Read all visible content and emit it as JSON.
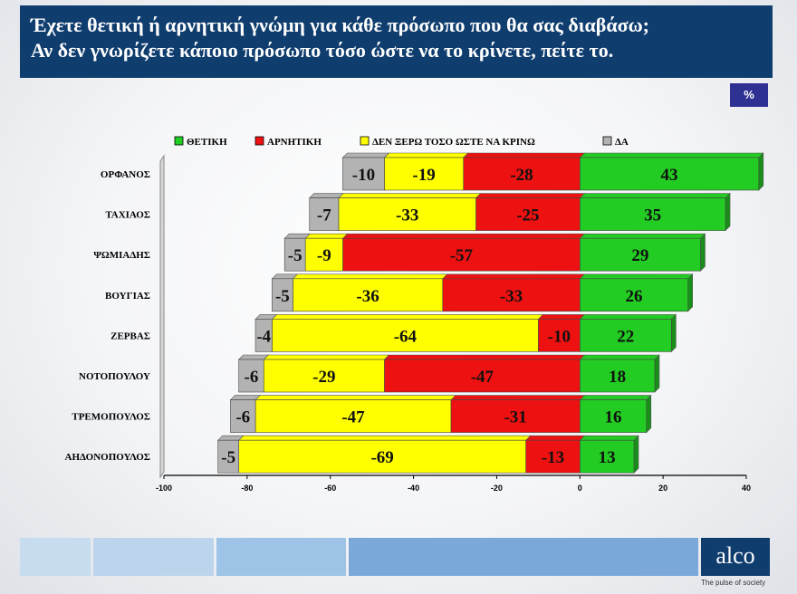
{
  "header": {
    "line1": "Έχετε θετική ή αρνητική γνώμη για κάθε πρόσωπο που θα σας διαβάσω;",
    "line2": "Αν δεν γνωρίζετε κάποιο πρόσωπο τόσο ώστε να το κρίνετε, πείτε το."
  },
  "badge": "%",
  "brand": {
    "name": "alco",
    "tagline": "The pulse of society"
  },
  "chart_data": {
    "type": "bar",
    "orientation": "horizontal",
    "stacked": true,
    "title": "",
    "xlabel": "",
    "ylabel": "",
    "xlim": [
      -100,
      40
    ],
    "x_ticks": [
      -100,
      -80,
      -60,
      -40,
      -20,
      0,
      20,
      40
    ],
    "legend_position": "top",
    "grid": false,
    "categories": [
      "ΟΡΦΑΝΟΣ",
      "ΤΑΧΙΑΟΣ",
      "ΨΩΜΙΑΔΗΣ",
      "ΒΟΥΓΙΑΣ",
      "ΖΕΡΒΑΣ",
      "ΝΟΤΟΠΟΥΛΟΥ",
      "ΤΡΕΜΟΠΟΥΛΟΣ",
      "ΑΗΔΟΝΟΠΟΥΛΟΣ"
    ],
    "series": [
      {
        "name": "ΘΕΤΙΚΗ",
        "color": "#22cc22",
        "values": [
          43,
          35,
          29,
          26,
          22,
          18,
          16,
          13
        ]
      },
      {
        "name": "ΑΡΝΗΤΙΚΗ",
        "color": "#ee1111",
        "values": [
          -28,
          -25,
          -57,
          -33,
          -10,
          -47,
          -31,
          -13
        ]
      },
      {
        "name": "ΔΕΝ ΞΕΡΩ ΤΟΣΟ ΩΣΤΕ ΝΑ ΚΡΙΝΩ",
        "color": "#ffff00",
        "values": [
          -19,
          -33,
          -9,
          -36,
          -64,
          -29,
          -47,
          -69
        ]
      },
      {
        "name": "ΔΑ",
        "color": "#b3b3b3",
        "values": [
          -10,
          -7,
          -5,
          -5,
          -4,
          -6,
          -6,
          -5
        ]
      }
    ]
  }
}
